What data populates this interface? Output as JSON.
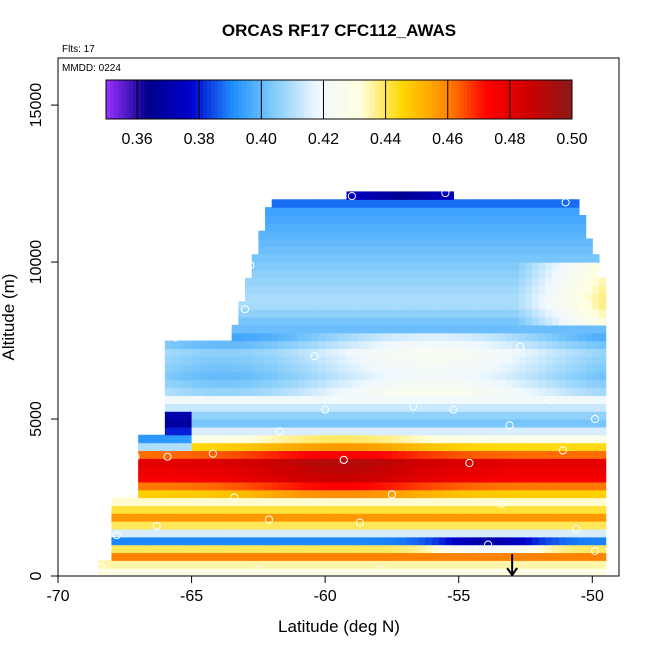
{
  "chart_data": {
    "type": "heatmap",
    "title": "ORCAS RF17 CFC112_AWAS",
    "annotations": [
      "Flts: 17",
      "MMDD: 0224"
    ],
    "xlabel": "Latitude (deg N)",
    "ylabel": "Altitude (m)",
    "xlim": [
      -70,
      -49
    ],
    "ylim": [
      0,
      16500
    ],
    "x_ticks": [
      -70,
      -65,
      -60,
      -55,
      -50
    ],
    "x_tick_labels": [
      "-70",
      "-65",
      "-60",
      "-55",
      "-50"
    ],
    "y_ticks": [
      0,
      5000,
      10000,
      15000
    ],
    "y_tick_labels": [
      "0",
      "5000",
      "10000",
      "15000"
    ],
    "colorbar": {
      "min": 0.35,
      "max": 0.5,
      "ticks": [
        0.36,
        0.38,
        0.4,
        0.42,
        0.44,
        0.46,
        0.48,
        0.5
      ],
      "tick_labels": [
        "0.36",
        "0.38",
        "0.40",
        "0.42",
        "0.44",
        "0.46",
        "0.48",
        "0.50"
      ],
      "colors": [
        "#9b30ff",
        "#00008b",
        "#0000cd",
        "#1e90ff",
        "#87cefa",
        "#f0f8ff",
        "#ffffe0",
        "#ffd700",
        "#ff8c00",
        "#ff0000",
        "#cd0000",
        "#8b1a1a"
      ]
    },
    "field_bands": [
      {
        "alt": 200,
        "value": 0.43
      },
      {
        "alt": 600,
        "value": 0.47
      },
      {
        "alt": 1000,
        "value": 0.39
      },
      {
        "alt": 1300,
        "value": 0.42
      },
      {
        "alt": 1700,
        "value": 0.46
      },
      {
        "alt": 2200,
        "value": 0.43
      },
      {
        "alt": 3000,
        "value": 0.475
      },
      {
        "alt": 3500,
        "value": 0.48
      },
      {
        "alt": 4200,
        "value": 0.43
      },
      {
        "alt": 4800,
        "value": 0.4
      },
      {
        "alt": 5500,
        "value": 0.42
      },
      {
        "alt": 6200,
        "value": 0.41
      },
      {
        "alt": 7000,
        "value": 0.415
      },
      {
        "alt": 7800,
        "value": 0.4
      },
      {
        "alt": 8600,
        "value": 0.41
      },
      {
        "alt": 9500,
        "value": 0.405
      },
      {
        "alt": 10500,
        "value": 0.4
      },
      {
        "alt": 11500,
        "value": 0.395
      },
      {
        "alt": 12000,
        "value": 0.38
      }
    ],
    "observations": [
      {
        "lat": -68.4,
        "alt": 300
      },
      {
        "lat": -67.8,
        "alt": 1300
      },
      {
        "lat": -67.1,
        "alt": 3800
      },
      {
        "lat": -66.7,
        "alt": 5600
      },
      {
        "lat": -66.3,
        "alt": 1600
      },
      {
        "lat": -65.9,
        "alt": 3800
      },
      {
        "lat": -65.6,
        "alt": 7600
      },
      {
        "lat": -64.7,
        "alt": 5600
      },
      {
        "lat": -64.2,
        "alt": 3900
      },
      {
        "lat": -63.9,
        "alt": 8000
      },
      {
        "lat": -63.4,
        "alt": 2500
      },
      {
        "lat": -63.0,
        "alt": 8500
      },
      {
        "lat": -62.8,
        "alt": 9900
      },
      {
        "lat": -62.4,
        "alt": 11900
      },
      {
        "lat": -62.1,
        "alt": 1800
      },
      {
        "lat": -61.7,
        "alt": 4600
      },
      {
        "lat": -62.5,
        "alt": 200
      },
      {
        "lat": -60.4,
        "alt": 7000
      },
      {
        "lat": -60.0,
        "alt": 5300
      },
      {
        "lat": -59.3,
        "alt": 3700
      },
      {
        "lat": -59.0,
        "alt": 12100
      },
      {
        "lat": -58.7,
        "alt": 1700
      },
      {
        "lat": -57.9,
        "alt": 200
      },
      {
        "lat": -57.5,
        "alt": 2600
      },
      {
        "lat": -56.7,
        "alt": 5400
      },
      {
        "lat": -56.3,
        "alt": 7100
      },
      {
        "lat": -55.5,
        "alt": 12200
      },
      {
        "lat": -55.2,
        "alt": 5300
      },
      {
        "lat": -54.6,
        "alt": 3600
      },
      {
        "lat": -53.9,
        "alt": 1000
      },
      {
        "lat": -53.4,
        "alt": 2300
      },
      {
        "lat": -53.1,
        "alt": 4800
      },
      {
        "lat": -52.7,
        "alt": 7300
      },
      {
        "lat": -51.6,
        "alt": 5600
      },
      {
        "lat": -51.1,
        "alt": 4000
      },
      {
        "lat": -50.6,
        "alt": 1500
      },
      {
        "lat": -50.2,
        "alt": 8600
      },
      {
        "lat": -49.9,
        "alt": 5000
      },
      {
        "lat": -49.9,
        "alt": 800
      },
      {
        "lat": -51.0,
        "alt": 11900
      }
    ],
    "marker": {
      "lat": -53.0,
      "alt": 700,
      "symbol": "down-arrow"
    },
    "grid": false,
    "legend": "top (colorbar inside plot)"
  }
}
